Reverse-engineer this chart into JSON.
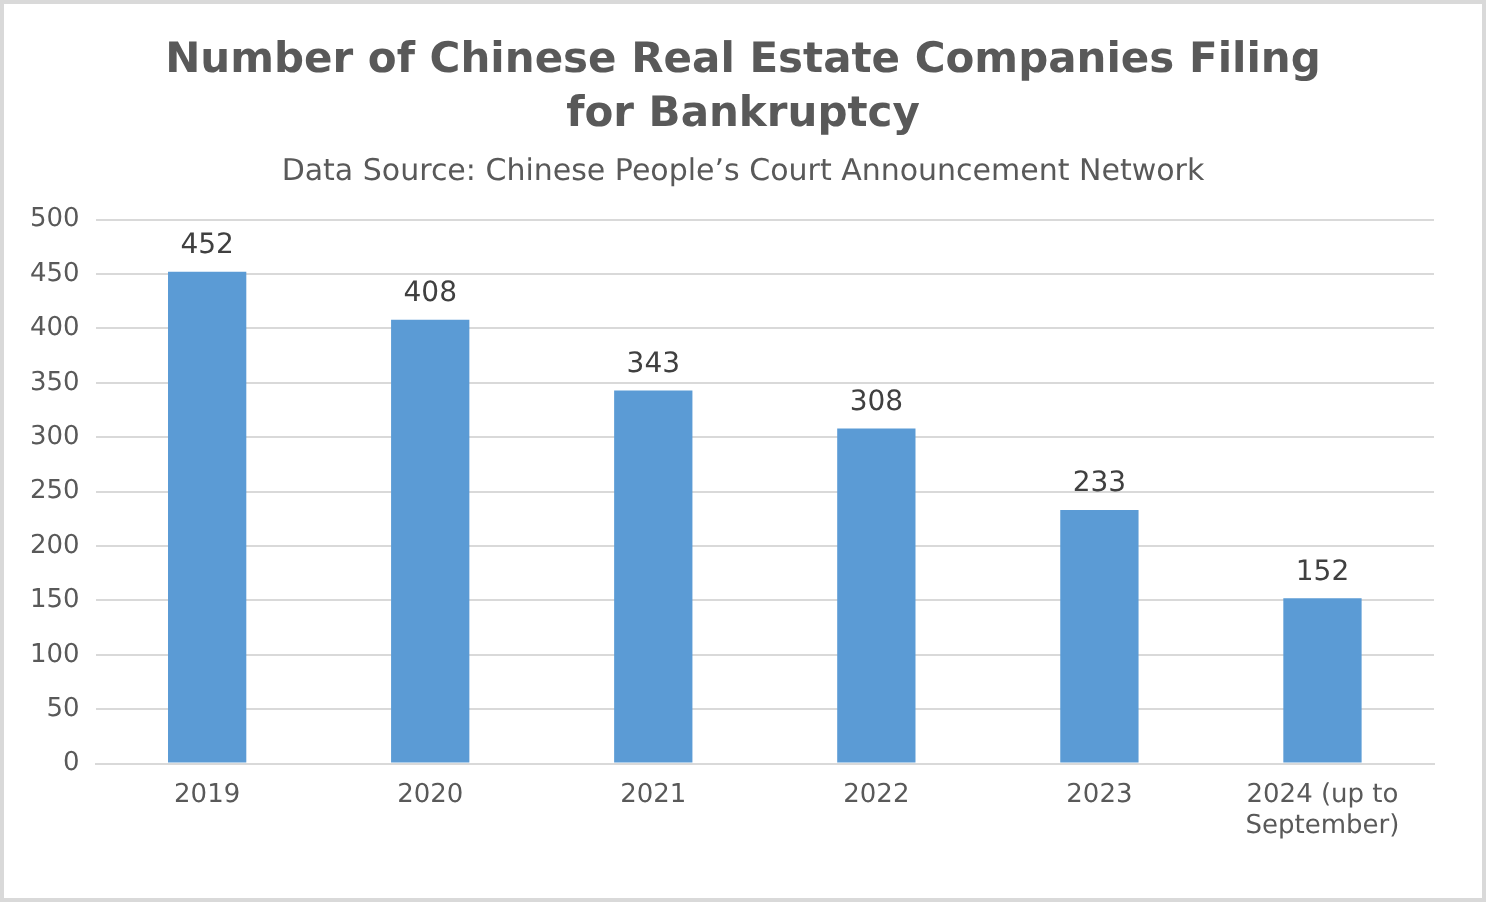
{
  "chart_data": {
    "type": "bar",
    "title": "Number of Chinese Real Estate Companies Filing for Bankruptcy",
    "subtitle": "Data Source: Chinese People’s Court Announcement Network",
    "categories": [
      "2019",
      "2020",
      "2021",
      "2022",
      "2023",
      "2024 (up to September)"
    ],
    "values": [
      452,
      408,
      343,
      308,
      233,
      152
    ],
    "color": "#5b9bd5",
    "ylim": [
      0,
      500
    ],
    "yticks": [
      0,
      50,
      100,
      150,
      200,
      250,
      300,
      350,
      400,
      450,
      500
    ],
    "grid": "y",
    "data_labels": true,
    "legend": false
  }
}
